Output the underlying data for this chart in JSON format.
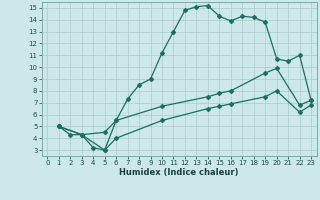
{
  "xlabel": "Humidex (Indice chaleur)",
  "bg_color": "#cce8e8",
  "line_color": "#1a7060",
  "grid_color": "#aacccc",
  "xlim": [
    -0.5,
    23.5
  ],
  "ylim": [
    2.5,
    15.5
  ],
  "xticks": [
    0,
    1,
    2,
    3,
    4,
    5,
    6,
    7,
    8,
    9,
    10,
    11,
    12,
    13,
    14,
    15,
    16,
    17,
    18,
    19,
    20,
    21,
    22,
    23
  ],
  "yticks": [
    3,
    4,
    5,
    6,
    7,
    8,
    9,
    10,
    11,
    12,
    13,
    14,
    15
  ],
  "line1_x": [
    1,
    2,
    3,
    4,
    5,
    6,
    7,
    8,
    9,
    10,
    11,
    12,
    13,
    14,
    15,
    16,
    17,
    18,
    19,
    20,
    21,
    22,
    23
  ],
  "line1_y": [
    5.0,
    4.3,
    4.3,
    3.2,
    3.0,
    5.5,
    7.3,
    8.5,
    9.0,
    11.2,
    13.0,
    14.8,
    15.1,
    15.2,
    14.3,
    13.9,
    14.3,
    14.2,
    13.8,
    10.7,
    10.5,
    11.0,
    7.2
  ],
  "line2_x": [
    1,
    3,
    5,
    6,
    10,
    14,
    15,
    16,
    19,
    20,
    22,
    23
  ],
  "line2_y": [
    5.0,
    4.3,
    4.5,
    5.5,
    6.7,
    7.5,
    7.8,
    8.0,
    9.5,
    9.9,
    6.8,
    7.2
  ],
  "line3_x": [
    1,
    3,
    5,
    6,
    10,
    14,
    15,
    16,
    19,
    20,
    22,
    23
  ],
  "line3_y": [
    5.0,
    4.3,
    3.0,
    4.0,
    5.5,
    6.5,
    6.7,
    6.9,
    7.5,
    8.0,
    6.2,
    6.8
  ]
}
